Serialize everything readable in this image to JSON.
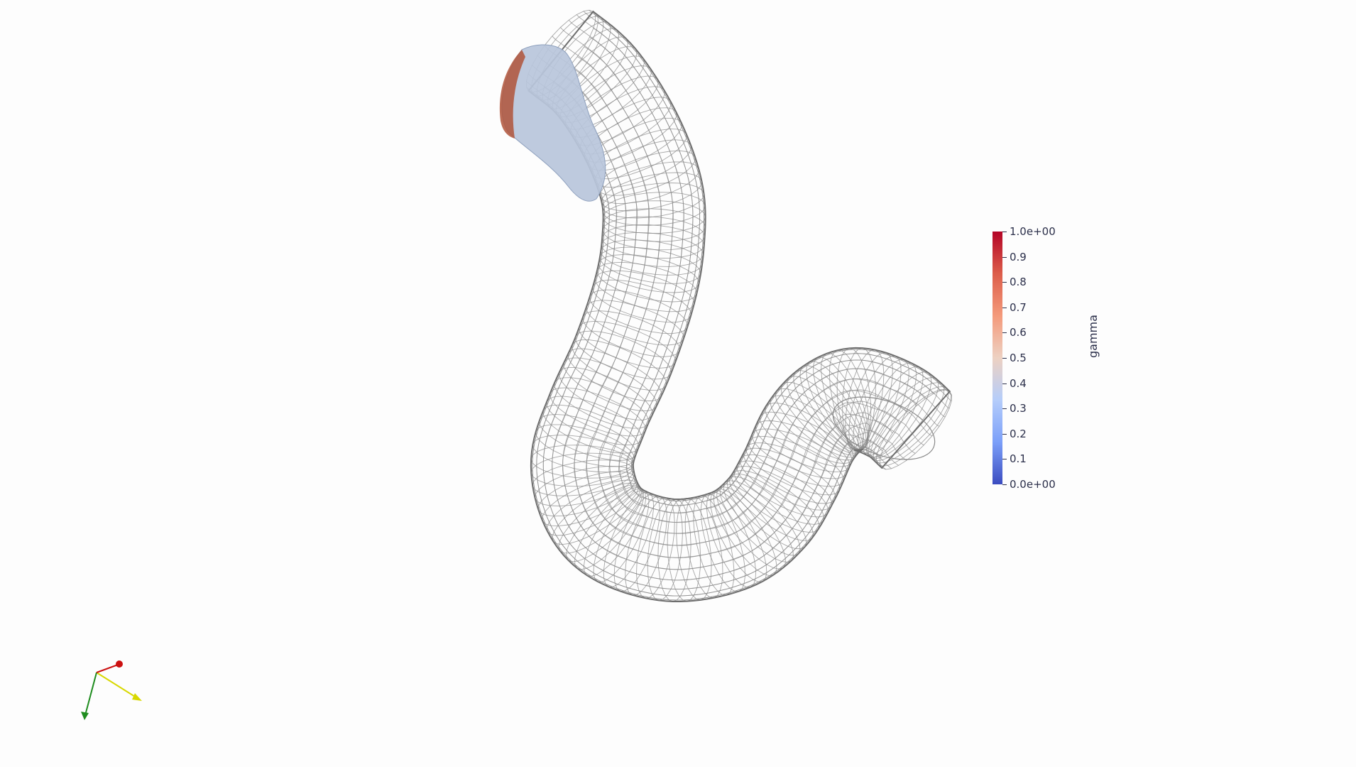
{
  "viewport": {
    "background": "#fdfdfd",
    "mesh_color": "#8a8a8a",
    "fluid_color": "#b9c6db"
  },
  "colorbar": {
    "title": "gamma",
    "labels": [
      "1.0e+00",
      "0.9",
      "0.8",
      "0.7",
      "0.6",
      "0.5",
      "0.4",
      "0.3",
      "0.2",
      "0.1",
      "0.0e+00"
    ],
    "values": [
      1.0,
      0.9,
      0.8,
      0.7,
      0.6,
      0.5,
      0.4,
      0.3,
      0.2,
      0.1,
      0.0
    ],
    "colors": [
      "#b40426",
      "#dc5d4a",
      "#f49a7b",
      "#edd1c2",
      "#b5cdfa",
      "#7b9ff9",
      "#3b4cc0"
    ]
  },
  "orientation_axes": {
    "x_color": "#d8d800",
    "y_color": "#1e8c1e",
    "z_color": "#cc1111"
  }
}
